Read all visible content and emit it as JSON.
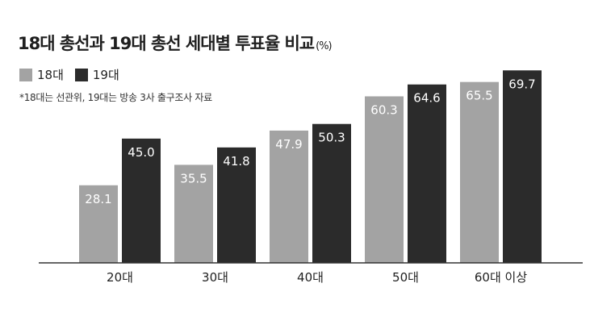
{
  "chart_data": {
    "type": "bar",
    "title": "18대 총선과 19대 총선 세대별 투표율 비교",
    "unit": "(%)",
    "note": "*18대는 선관위, 19대는 방송 3사 출구조사 자료",
    "categories": [
      "20대",
      "30대",
      "40대",
      "50대",
      "60대 이상"
    ],
    "series": [
      {
        "name": "18대",
        "color": "#a3a3a3",
        "values": [
          28.1,
          35.5,
          47.9,
          60.3,
          65.5
        ]
      },
      {
        "name": "19대",
        "color": "#2b2b2b",
        "values": [
          45.0,
          41.8,
          50.3,
          64.6,
          69.7
        ]
      }
    ],
    "ylim": [
      0,
      80
    ],
    "grid": false,
    "legend_position": "top-left"
  }
}
